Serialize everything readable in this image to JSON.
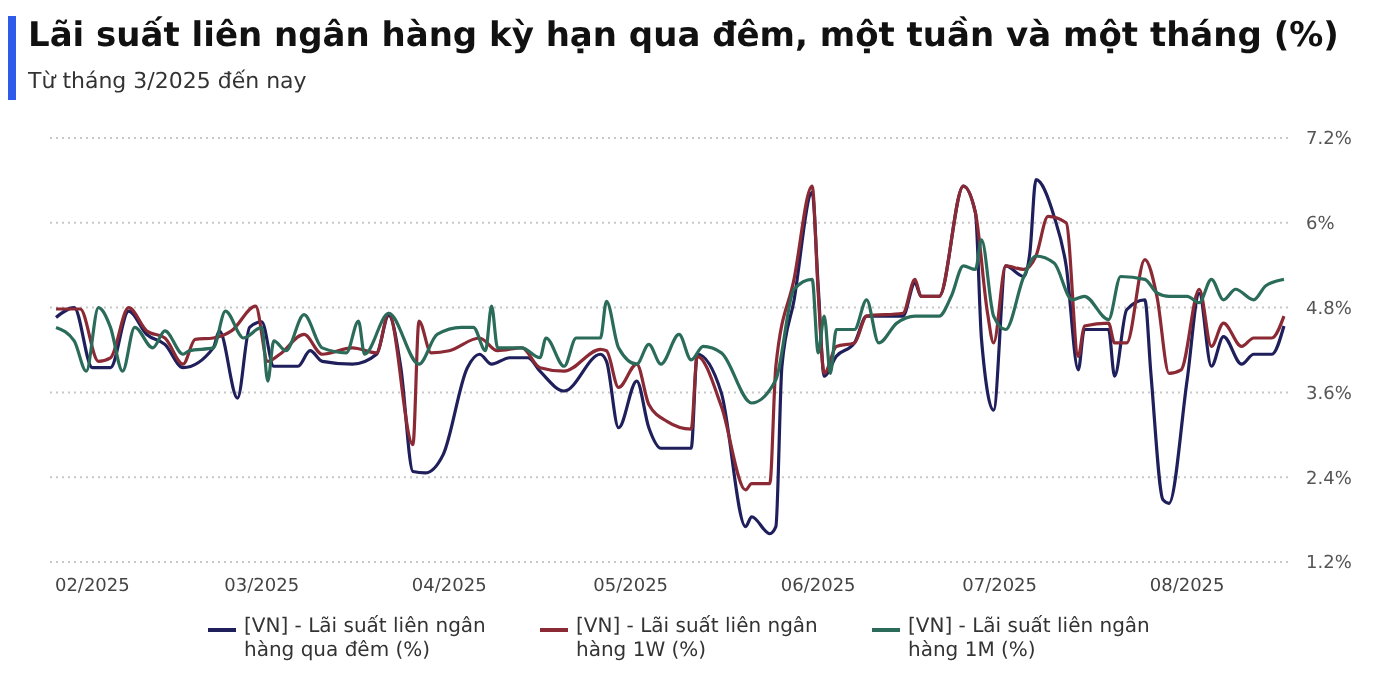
{
  "chart_data": {
    "type": "line",
    "title": "Lãi suất liên ngân hàng kỳ hạn qua đêm, một tuần và một tháng (%)",
    "subtitle": "Từ tháng 3/2025 đến nay",
    "xlim": [
      "2025-01-25",
      "2025-08-18"
    ],
    "xticks": [
      {
        "value": "2025-02-01",
        "label": "02/2025"
      },
      {
        "value": "2025-03-01",
        "label": "03/2025"
      },
      {
        "value": "2025-04-01",
        "label": "04/2025"
      },
      {
        "value": "2025-05-01",
        "label": "05/2025"
      },
      {
        "value": "2025-06-01",
        "label": "06/2025"
      },
      {
        "value": "2025-07-01",
        "label": "07/2025"
      },
      {
        "value": "2025-08-01",
        "label": "08/2025"
      }
    ],
    "ylim": [
      1.2,
      7.2
    ],
    "yticks": [
      {
        "value": 1.2,
        "label": "1.2%"
      },
      {
        "value": 2.4,
        "label": "2.4%"
      },
      {
        "value": 3.6,
        "label": "3.6%"
      },
      {
        "value": 4.8,
        "label": "4.8%"
      },
      {
        "value": 6,
        "label": "6%"
      },
      {
        "value": 7.2,
        "label": "7.2%"
      }
    ],
    "grid": "y",
    "legend": "bottom",
    "line_style": "solid",
    "series": [
      {
        "name": "[VN] - Lãi suất liên ngân hàng qua đêm (%)",
        "color": "#1f1f5c",
        "x": [
          "2025-01-26",
          "2025-01-29",
          "2025-02-01",
          "2025-02-04",
          "2025-02-07",
          "2025-02-10",
          "2025-02-13",
          "2025-02-16",
          "2025-02-21",
          "2025-02-22",
          "2025-02-25",
          "2025-02-27",
          "2025-03-01",
          "2025-03-03",
          "2025-03-07",
          "2025-03-09",
          "2025-03-11",
          "2025-03-16",
          "2025-03-20",
          "2025-03-22",
          "2025-03-24",
          "2025-03-26",
          "2025-03-28",
          "2025-03-31",
          "2025-04-04",
          "2025-04-06",
          "2025-04-08",
          "2025-04-11",
          "2025-04-14",
          "2025-04-16",
          "2025-04-20",
          "2025-04-26",
          "2025-04-27",
          "2025-04-29",
          "2025-05-02",
          "2025-05-04",
          "2025-05-06",
          "2025-05-11",
          "2025-05-12",
          "2025-05-16",
          "2025-05-20",
          "2025-05-21",
          "2025-05-24",
          "2025-05-25",
          "2025-05-26",
          "2025-05-28",
          "2025-05-31",
          "2025-06-01",
          "2025-06-02",
          "2025-06-04",
          "2025-06-07",
          "2025-06-09",
          "2025-06-15",
          "2025-06-17",
          "2025-06-18",
          "2025-06-21",
          "2025-06-25",
          "2025-06-27",
          "2025-06-28",
          "2025-06-30",
          "2025-07-02",
          "2025-07-05",
          "2025-07-06",
          "2025-07-07",
          "2025-07-10",
          "2025-07-12",
          "2025-07-14",
          "2025-07-15",
          "2025-07-19",
          "2025-07-20",
          "2025-07-22",
          "2025-07-25",
          "2025-07-26",
          "2025-07-28",
          "2025-07-29",
          "2025-08-01",
          "2025-08-03",
          "2025-08-05",
          "2025-08-07",
          "2025-08-10",
          "2025-08-12",
          "2025-08-15",
          "2025-08-17"
        ],
        "values": [
          4.66,
          4.8,
          3.95,
          3.95,
          4.75,
          4.42,
          4.28,
          3.95,
          4.23,
          4.47,
          3.52,
          4.52,
          4.6,
          3.97,
          3.97,
          4.19,
          4.04,
          4.0,
          4.14,
          4.69,
          3.95,
          2.48,
          2.46,
          2.72,
          3.95,
          4.14,
          4.0,
          4.09,
          4.09,
          3.9,
          3.62,
          4.14,
          4.04,
          3.1,
          3.76,
          3.1,
          2.81,
          2.81,
          4.14,
          3.59,
          1.7,
          1.84,
          1.6,
          1.7,
          3.97,
          4.9,
          6.43,
          5.1,
          3.83,
          4.11,
          4.3,
          4.68,
          4.68,
          5.15,
          4.96,
          4.96,
          6.52,
          6.14,
          4.35,
          3.35,
          5.39,
          5.24,
          5.58,
          6.61,
          6.09,
          5.39,
          3.92,
          4.49,
          4.49,
          3.83,
          4.77,
          4.91,
          3.87,
          2.08,
          2.03,
          3.78,
          5.0,
          3.97,
          4.39,
          4.0,
          4.14,
          4.14,
          4.54
        ]
      },
      {
        "name": "[VN] - Lãi suất liên ngân hàng 1W (%)",
        "color": "#8b2a35",
        "x": [
          "2025-01-26",
          "2025-01-30",
          "2025-02-02",
          "2025-02-04",
          "2025-02-07",
          "2025-02-10",
          "2025-02-13",
          "2025-02-16",
          "2025-02-18",
          "2025-02-21",
          "2025-02-24",
          "2025-02-28",
          "2025-03-02",
          "2025-03-04",
          "2025-03-08",
          "2025-03-11",
          "2025-03-16",
          "2025-03-20",
          "2025-03-22",
          "2025-03-26",
          "2025-03-27",
          "2025-03-29",
          "2025-04-01",
          "2025-04-06",
          "2025-04-09",
          "2025-04-13",
          "2025-04-16",
          "2025-04-20",
          "2025-04-26",
          "2025-04-27",
          "2025-04-29",
          "2025-05-02",
          "2025-05-04",
          "2025-05-07",
          "2025-05-11",
          "2025-05-12",
          "2025-05-16",
          "2025-05-20",
          "2025-05-21",
          "2025-05-24",
          "2025-05-25",
          "2025-05-28",
          "2025-05-31",
          "2025-06-01",
          "2025-06-02",
          "2025-06-04",
          "2025-06-07",
          "2025-06-09",
          "2025-06-15",
          "2025-06-17",
          "2025-06-18",
          "2025-06-21",
          "2025-06-25",
          "2025-06-27",
          "2025-06-29",
          "2025-06-30",
          "2025-07-02",
          "2025-07-05",
          "2025-07-07",
          "2025-07-09",
          "2025-07-12",
          "2025-07-14",
          "2025-07-15",
          "2025-07-19",
          "2025-07-20",
          "2025-07-22",
          "2025-07-25",
          "2025-07-27",
          "2025-07-29",
          "2025-07-31",
          "2025-08-03",
          "2025-08-05",
          "2025-08-07",
          "2025-08-10",
          "2025-08-12",
          "2025-08-15",
          "2025-08-17"
        ],
        "values": [
          4.78,
          4.78,
          4.04,
          4.09,
          4.8,
          4.47,
          4.37,
          4.0,
          4.35,
          4.37,
          4.47,
          4.82,
          4.04,
          4.14,
          4.42,
          4.14,
          4.23,
          4.16,
          4.72,
          2.86,
          4.61,
          4.16,
          4.19,
          4.37,
          4.19,
          4.23,
          3.95,
          3.9,
          4.21,
          4.19,
          3.67,
          4.0,
          3.43,
          3.19,
          3.08,
          4.11,
          3.4,
          2.22,
          2.31,
          2.31,
          3.97,
          5.2,
          6.52,
          5.01,
          3.87,
          4.25,
          4.3,
          4.68,
          4.72,
          5.2,
          4.96,
          4.96,
          6.52,
          6.14,
          4.72,
          4.3,
          5.39,
          5.34,
          5.53,
          6.09,
          6.0,
          4.11,
          4.54,
          4.58,
          4.3,
          4.3,
          5.48,
          4.96,
          3.87,
          3.92,
          5.06,
          4.25,
          4.58,
          4.25,
          4.37,
          4.37,
          4.68
        ]
      },
      {
        "name": "[VN] - Lãi suất liên ngân hàng 1M (%)",
        "color": "#2a6b5a",
        "x": [
          "2025-01-26",
          "2025-01-29",
          "2025-01-31",
          "2025-02-02",
          "2025-02-04",
          "2025-02-06",
          "2025-02-08",
          "2025-02-11",
          "2025-02-13",
          "2025-02-16",
          "2025-02-17",
          "2025-02-21",
          "2025-02-23",
          "2025-02-26",
          "2025-03-01",
          "2025-03-02",
          "2025-03-03",
          "2025-03-05",
          "2025-03-08",
          "2025-03-11",
          "2025-03-15",
          "2025-03-17",
          "2025-03-18",
          "2025-03-22",
          "2025-03-27",
          "2025-03-30",
          "2025-04-03",
          "2025-04-05",
          "2025-04-07",
          "2025-04-08",
          "2025-04-09",
          "2025-04-13",
          "2025-04-16",
          "2025-04-17",
          "2025-04-20",
          "2025-04-22",
          "2025-04-26",
          "2025-04-27",
          "2025-04-29",
          "2025-05-02",
          "2025-05-04",
          "2025-05-06",
          "2025-05-09",
          "2025-05-11",
          "2025-05-13",
          "2025-05-16",
          "2025-05-21",
          "2025-05-25",
          "2025-05-28",
          "2025-05-31",
          "2025-06-01",
          "2025-06-02",
          "2025-06-03",
          "2025-06-04",
          "2025-06-07",
          "2025-06-09",
          "2025-06-11",
          "2025-06-14",
          "2025-06-17",
          "2025-06-21",
          "2025-06-23",
          "2025-06-25",
          "2025-06-27",
          "2025-06-28",
          "2025-06-30",
          "2025-07-02",
          "2025-07-05",
          "2025-07-07",
          "2025-07-10",
          "2025-07-13",
          "2025-07-15",
          "2025-07-19",
          "2025-07-21",
          "2025-07-25",
          "2025-07-27",
          "2025-07-29",
          "2025-08-01",
          "2025-08-03",
          "2025-08-05",
          "2025-08-07",
          "2025-08-09",
          "2025-08-12",
          "2025-08-14",
          "2025-08-17"
        ],
        "values": [
          4.52,
          4.33,
          3.9,
          4.8,
          4.52,
          3.9,
          4.52,
          4.23,
          4.47,
          4.14,
          4.19,
          4.23,
          4.75,
          4.37,
          4.52,
          3.76,
          4.33,
          4.19,
          4.7,
          4.23,
          4.16,
          4.61,
          4.14,
          4.72,
          4.0,
          4.42,
          4.52,
          4.52,
          4.19,
          4.82,
          4.23,
          4.23,
          4.09,
          4.37,
          3.97,
          4.37,
          4.37,
          4.89,
          4.23,
          4.0,
          4.28,
          4.0,
          4.42,
          4.06,
          4.25,
          4.16,
          3.45,
          3.78,
          5.06,
          5.2,
          4.16,
          4.68,
          3.87,
          4.49,
          4.49,
          4.91,
          4.3,
          4.58,
          4.68,
          4.68,
          4.96,
          5.39,
          5.34,
          5.76,
          4.68,
          4.49,
          5.24,
          5.53,
          5.43,
          4.91,
          4.96,
          4.63,
          5.24,
          5.2,
          5.01,
          4.96,
          4.96,
          4.87,
          5.2,
          4.91,
          5.06,
          4.91,
          5.11,
          5.2
        ]
      }
    ]
  }
}
